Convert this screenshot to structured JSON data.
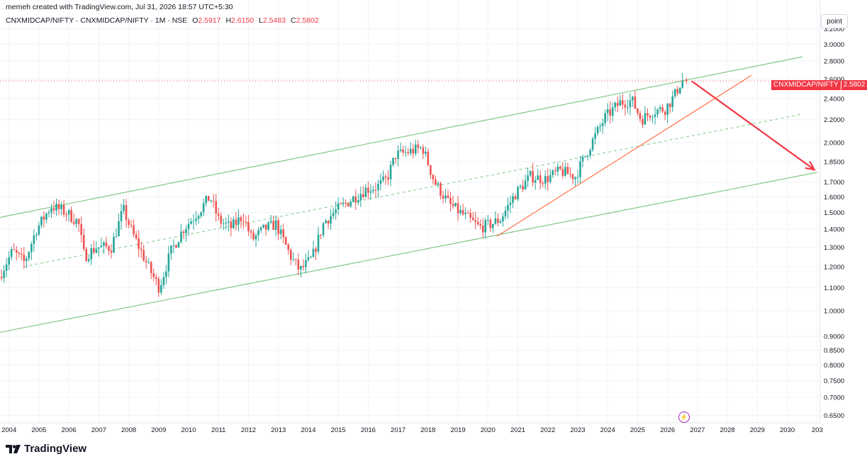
{
  "header": {
    "caption": "memeh created with TradingView.com, Jul 31, 2026 18:57 UTC+5:30",
    "symbol": "CNXMIDCAP/NIFTY · CNXMIDCAP/NIFTY · 1M · NSE",
    "o_label": "O",
    "o_value": "2.5917",
    "h_label": "H",
    "h_value": "2.6150",
    "l_label": "L",
    "l_value": "2.5483",
    "c_label": "C",
    "c_value": "2.5802"
  },
  "scale_button": "point",
  "last_price": {
    "symbol": "CNXMIDCAP/NIFTY",
    "value": "2.5802"
  },
  "logo_text": "TradingView",
  "colors": {
    "up": "#26a69a",
    "down": "#ef5350",
    "channel": "#81c784",
    "trendline": "#ff7043",
    "arrow": "#f23645"
  },
  "chart_data": {
    "type": "candlestick",
    "scale": "log",
    "ylim": [
      0.63,
      3.3
    ],
    "xlim": [
      2003.7,
      2031.1
    ],
    "y_ticks": [
      "3.2000",
      "3.0000",
      "2.8000",
      "2.6000",
      "2.4000",
      "2.2000",
      "2.0000",
      "1.8500",
      "1.7000",
      "1.6000",
      "1.5000",
      "1.4000",
      "1.3000",
      "1.2000",
      "1.1000",
      "1.0000",
      "0.9000",
      "0.8500",
      "0.8000",
      "0.7500",
      "0.7000",
      "0.6500"
    ],
    "x_ticks": [
      "2004",
      "2005",
      "2006",
      "2007",
      "2008",
      "2009",
      "2010",
      "2011",
      "2012",
      "2013",
      "2014",
      "2015",
      "2016",
      "2017",
      "2018",
      "2019",
      "2020",
      "2021",
      "2022",
      "2023",
      "2024",
      "2025",
      "2026",
      "2027",
      "2028",
      "2029",
      "2030",
      "203"
    ],
    "price_path": [
      [
        2003.75,
        1.15
      ],
      [
        2004.2,
        1.28
      ],
      [
        2004.6,
        1.22
      ],
      [
        2005.0,
        1.4
      ],
      [
        2005.5,
        1.54
      ],
      [
        2006.0,
        1.5
      ],
      [
        2006.4,
        1.44
      ],
      [
        2006.6,
        1.25
      ],
      [
        2007.0,
        1.3
      ],
      [
        2007.5,
        1.3
      ],
      [
        2007.9,
        1.52
      ],
      [
        2008.2,
        1.38
      ],
      [
        2008.8,
        1.18
      ],
      [
        2009.1,
        1.1
      ],
      [
        2009.5,
        1.28
      ],
      [
        2009.9,
        1.4
      ],
      [
        2010.3,
        1.48
      ],
      [
        2010.8,
        1.6
      ],
      [
        2011.1,
        1.45
      ],
      [
        2011.5,
        1.41
      ],
      [
        2011.9,
        1.48
      ],
      [
        2012.2,
        1.34
      ],
      [
        2012.6,
        1.4
      ],
      [
        2013.0,
        1.43
      ],
      [
        2013.5,
        1.25
      ],
      [
        2013.8,
        1.18
      ],
      [
        2014.2,
        1.24
      ],
      [
        2014.6,
        1.44
      ],
      [
        2015.0,
        1.51
      ],
      [
        2015.5,
        1.58
      ],
      [
        2016.0,
        1.65
      ],
      [
        2016.4,
        1.67
      ],
      [
        2016.7,
        1.72
      ],
      [
        2017.0,
        1.9
      ],
      [
        2017.5,
        1.93
      ],
      [
        2017.9,
        1.96
      ],
      [
        2018.3,
        1.7
      ],
      [
        2018.8,
        1.55
      ],
      [
        2019.3,
        1.48
      ],
      [
        2019.8,
        1.41
      ],
      [
        2020.2,
        1.43
      ],
      [
        2020.5,
        1.46
      ],
      [
        2021.0,
        1.62
      ],
      [
        2021.5,
        1.74
      ],
      [
        2022.0,
        1.72
      ],
      [
        2022.5,
        1.78
      ],
      [
        2023.0,
        1.74
      ],
      [
        2023.5,
        1.98
      ],
      [
        2024.0,
        2.22
      ],
      [
        2024.5,
        2.36
      ],
      [
        2024.9,
        2.38
      ],
      [
        2025.2,
        2.2
      ],
      [
        2025.6,
        2.28
      ],
      [
        2026.0,
        2.3
      ],
      [
        2026.3,
        2.42
      ],
      [
        2026.55,
        2.58
      ]
    ],
    "last": {
      "open": 2.5917,
      "high": 2.615,
      "low": 2.5483,
      "close": 2.5802
    },
    "drawings": {
      "channel_upper": [
        [
          2003.7,
          1.47
        ],
        [
          2030.5,
          2.85
        ]
      ],
      "channel_lower": [
        [
          2003.7,
          0.915
        ],
        [
          2031.0,
          1.77
        ]
      ],
      "channel_mid": [
        [
          2004.5,
          1.2
        ],
        [
          2030.5,
          2.25
        ]
      ],
      "trendline": [
        [
          2020.3,
          1.36
        ],
        [
          2028.8,
          2.64
        ]
      ],
      "arrow": [
        [
          2026.8,
          2.58
        ],
        [
          2030.9,
          1.79
        ]
      ]
    }
  }
}
